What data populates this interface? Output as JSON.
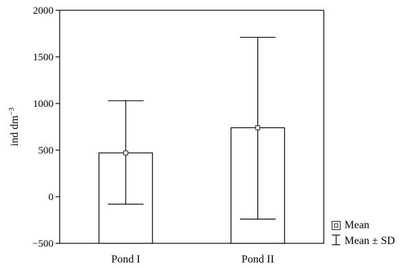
{
  "chart_data": {
    "type": "bar",
    "categories": [
      "Pond I",
      "Pond II"
    ],
    "series": [
      {
        "values": [
          470,
          740
        ],
        "error_low": [
          -80,
          -240
        ],
        "error_high": [
          1030,
          1710
        ]
      }
    ],
    "title": "",
    "xlabel": "",
    "ylabel": "ind dm",
    "ylabel_superscript": "−3",
    "ylim": [
      -500,
      2000
    ],
    "yticks": [
      2000,
      1500,
      1000,
      500,
      0,
      -500
    ],
    "ytick_labels": [
      "2000",
      "1500",
      "1000",
      "500",
      "0",
      "−500"
    ],
    "grid": false,
    "legend": {
      "placement": "bottom-right outside",
      "entries": [
        {
          "symbol": "square-marker",
          "label": "Mean"
        },
        {
          "symbol": "error-bar",
          "label": "Mean ± SD"
        }
      ]
    }
  }
}
